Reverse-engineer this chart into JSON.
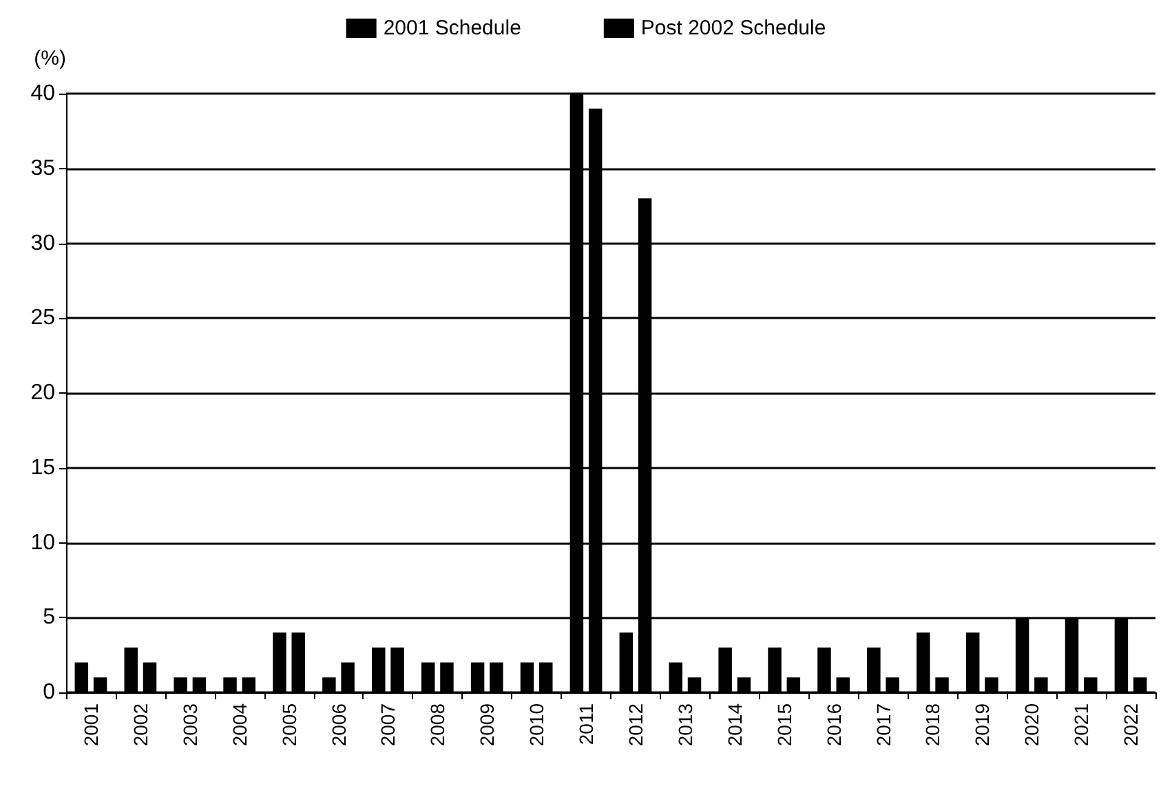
{
  "chart_data": {
    "type": "bar",
    "ylabel": "(%)",
    "categories": [
      "2001",
      "2002",
      "2003",
      "2004",
      "2005",
      "2006",
      "2007",
      "2008",
      "2009",
      "2010",
      "2011",
      "2012",
      "2013",
      "2014",
      "2015",
      "2016",
      "2017",
      "2018",
      "2019",
      "2020",
      "2021",
      "2022"
    ],
    "series": [
      {
        "name": "2001 Schedule",
        "color": "#000000",
        "values": [
          2,
          3,
          1,
          1,
          4,
          1,
          3,
          2,
          2,
          2,
          40,
          4,
          2,
          3,
          3,
          3,
          3,
          4,
          4,
          5,
          5,
          5
        ]
      },
      {
        "name": "Post 2002 Schedule",
        "color": "#000000",
        "values": [
          1,
          2,
          1,
          1,
          4,
          2,
          3,
          2,
          2,
          2,
          39,
          33,
          1,
          1,
          1,
          1,
          1,
          1,
          1,
          1,
          1,
          1
        ]
      }
    ],
    "ylim": [
      0,
      40
    ],
    "yticks": [
      0,
      5,
      10,
      15,
      20,
      25,
      30,
      35,
      40
    ],
    "grid": "y",
    "legend": "top"
  }
}
